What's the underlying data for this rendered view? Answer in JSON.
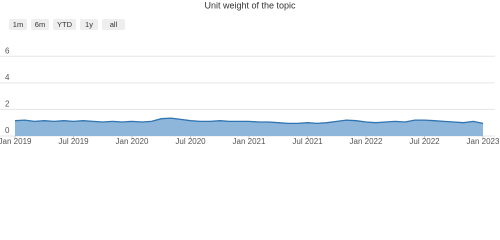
{
  "chart_data": {
    "type": "area",
    "title": "Unit weight of the topic",
    "range_selector": [
      "1m",
      "6m",
      "YTD",
      "1y",
      "all"
    ],
    "x": [
      "2019-01",
      "2019-02",
      "2019-03",
      "2019-04",
      "2019-05",
      "2019-06",
      "2019-07",
      "2019-08",
      "2019-09",
      "2019-10",
      "2019-11",
      "2019-12",
      "2020-01",
      "2020-02",
      "2020-03",
      "2020-04",
      "2020-05",
      "2020-06",
      "2020-07",
      "2020-08",
      "2020-09",
      "2020-10",
      "2020-11",
      "2020-12",
      "2021-01",
      "2021-02",
      "2021-03",
      "2021-04",
      "2021-05",
      "2021-06",
      "2021-07",
      "2021-08",
      "2021-09",
      "2021-10",
      "2021-11",
      "2021-12",
      "2022-01",
      "2022-02",
      "2022-03",
      "2022-04",
      "2022-05",
      "2022-06",
      "2022-07",
      "2022-08",
      "2022-09",
      "2022-10",
      "2022-11",
      "2022-12",
      "2023-01"
    ],
    "series": [
      {
        "color": "#2f74b0",
        "fill": "#8db6da",
        "values": [
          1.15,
          1.2,
          1.1,
          1.15,
          1.1,
          1.15,
          1.1,
          1.15,
          1.1,
          1.05,
          1.1,
          1.05,
          1.1,
          1.05,
          1.1,
          1.3,
          1.35,
          1.25,
          1.15,
          1.1,
          1.1,
          1.15,
          1.1,
          1.1,
          1.1,
          1.05,
          1.05,
          1.0,
          0.95,
          0.95,
          1.0,
          0.95,
          1.0,
          1.1,
          1.2,
          1.15,
          1.05,
          1.0,
          1.05,
          1.1,
          1.05,
          1.2,
          1.2,
          1.15,
          1.1,
          1.05,
          1.0,
          1.1,
          0.95
        ]
      }
    ],
    "xlim": [
      "2019-01",
      "2023-01"
    ],
    "xticks": [
      {
        "value": "2019-01",
        "label": "Jan 2019"
      },
      {
        "value": "2019-07",
        "label": "Jul 2019"
      },
      {
        "value": "2020-01",
        "label": "Jan 2020"
      },
      {
        "value": "2020-07",
        "label": "Jul 2020"
      },
      {
        "value": "2021-01",
        "label": "Jan 2021"
      },
      {
        "value": "2021-07",
        "label": "Jul 2021"
      },
      {
        "value": "2022-01",
        "label": "Jan 2022"
      },
      {
        "value": "2022-07",
        "label": "Jul 2022"
      },
      {
        "value": "2023-01",
        "label": "Jan 2023"
      }
    ],
    "ylim": [
      0,
      7.6
    ],
    "yticks": [
      0,
      2,
      4,
      6
    ],
    "grid": true
  }
}
